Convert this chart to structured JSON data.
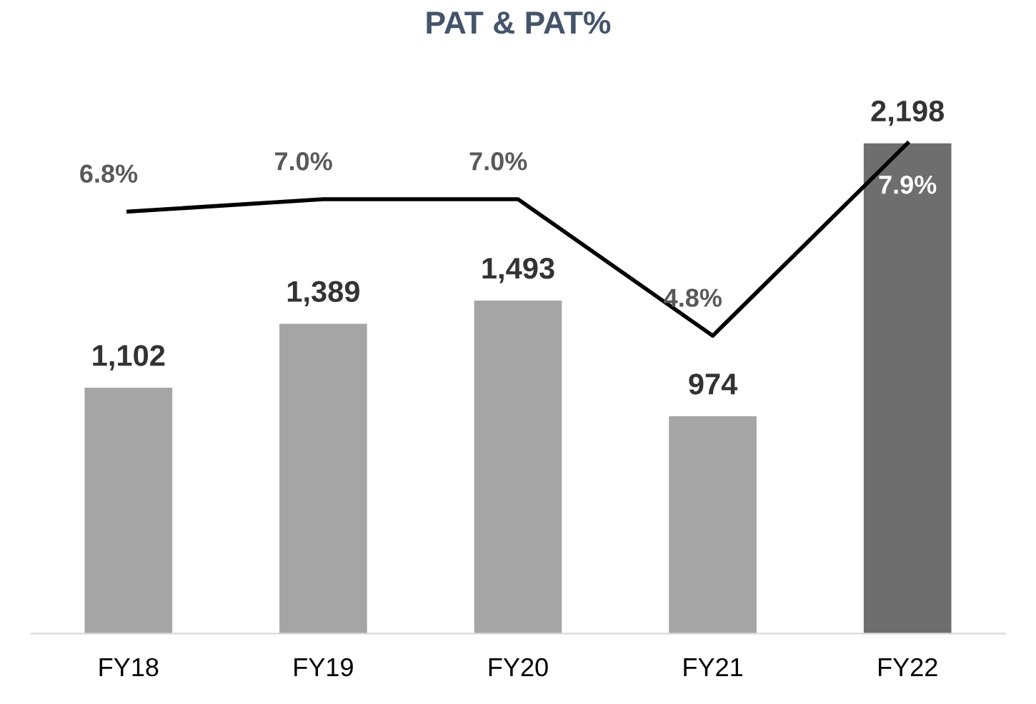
{
  "chart_data": {
    "type": "bar",
    "title": "PAT & PAT%",
    "categories": [
      "FY18",
      "FY19",
      "FY20",
      "FY21",
      "FY22"
    ],
    "series": [
      {
        "colors": [
          "#a5a5a5",
          "#a5a5a5",
          "#a5a5a5",
          "#a5a5a5",
          "#6e6e6e"
        ],
        "values": [
          1102,
          1389,
          1493,
          974,
          2198
        ],
        "value_labels": [
          "1,102",
          "1,389",
          "1,493",
          "974",
          "2,198"
        ]
      },
      {
        "type": "line",
        "axis": "y2",
        "color": "#000000",
        "values": [
          6.8,
          7.0,
          7.0,
          4.8,
          7.9
        ],
        "value_labels": [
          "6.8%",
          "7.0%",
          "7.0%",
          "4.8%",
          "7.9%"
        ]
      }
    ],
    "tick_labels": "x"
  }
}
